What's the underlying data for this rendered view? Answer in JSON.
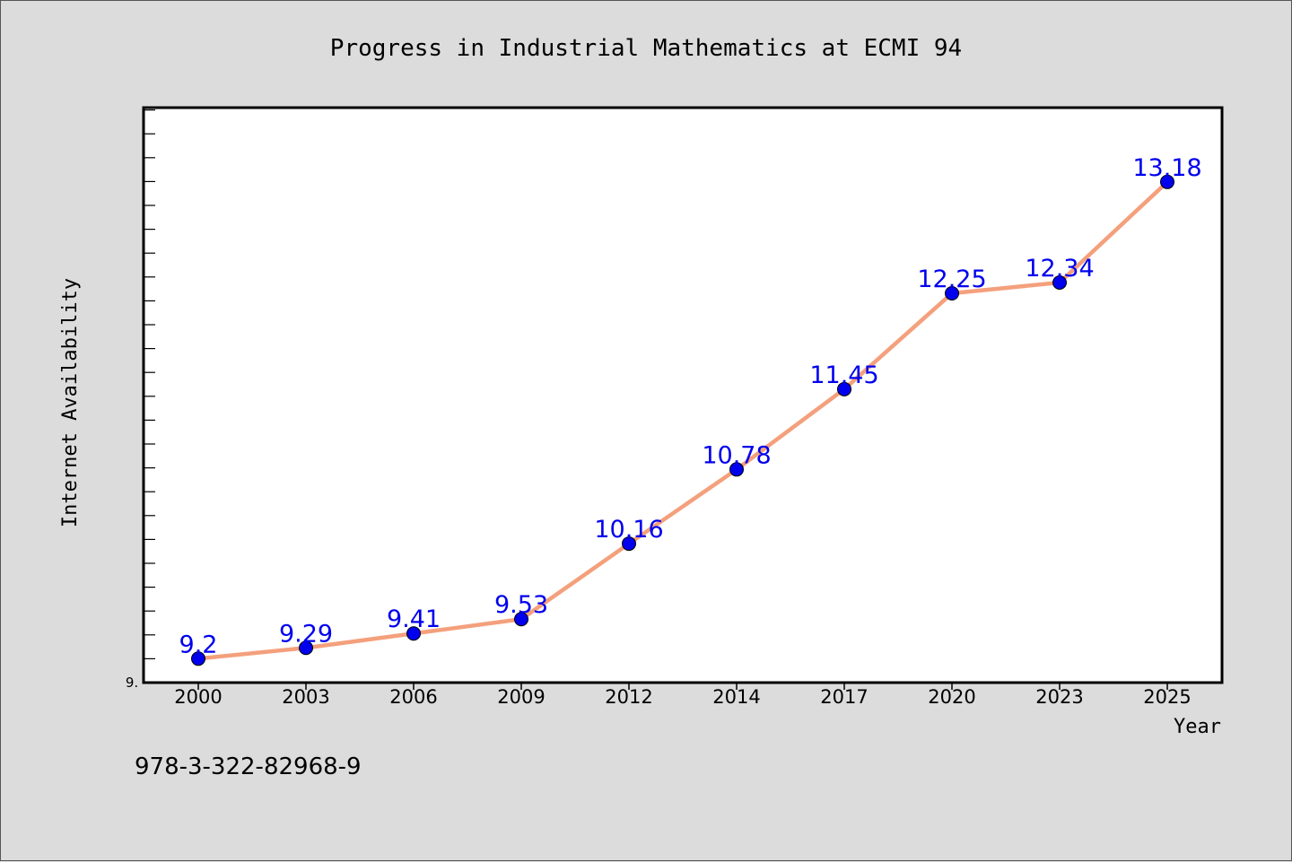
{
  "chart_data": {
    "type": "line",
    "title": "Progress in Industrial Mathematics at ECMI 94",
    "xlabel": "Year",
    "ylabel": "Internet Availability",
    "categories": [
      "2000",
      "2003",
      "2006",
      "2009",
      "2012",
      "2014",
      "2017",
      "2020",
      "2023",
      "2025"
    ],
    "series": [
      {
        "values": [
          9.2,
          9.29,
          9.41,
          9.53,
          10.16,
          10.78,
          11.45,
          12.25,
          12.34,
          13.18
        ],
        "data_labels": [
          "9.2",
          "9.29",
          "9.41",
          "9.53",
          "10.16",
          "10.78",
          "11.45",
          "12.25",
          "12.34",
          "13.18"
        ]
      }
    ],
    "ylim": [
      9.0,
      13.8
    ],
    "y_tick_label": "9.",
    "grid": false,
    "legend": "none",
    "colors": {
      "line": "#f4a07c",
      "marker": "#0000ee",
      "label": "#0000ee",
      "background": "#dcdcdc",
      "plot_bg": "#ffffff"
    }
  },
  "footer": {
    "isbn": "978-3-322-82968-9"
  }
}
